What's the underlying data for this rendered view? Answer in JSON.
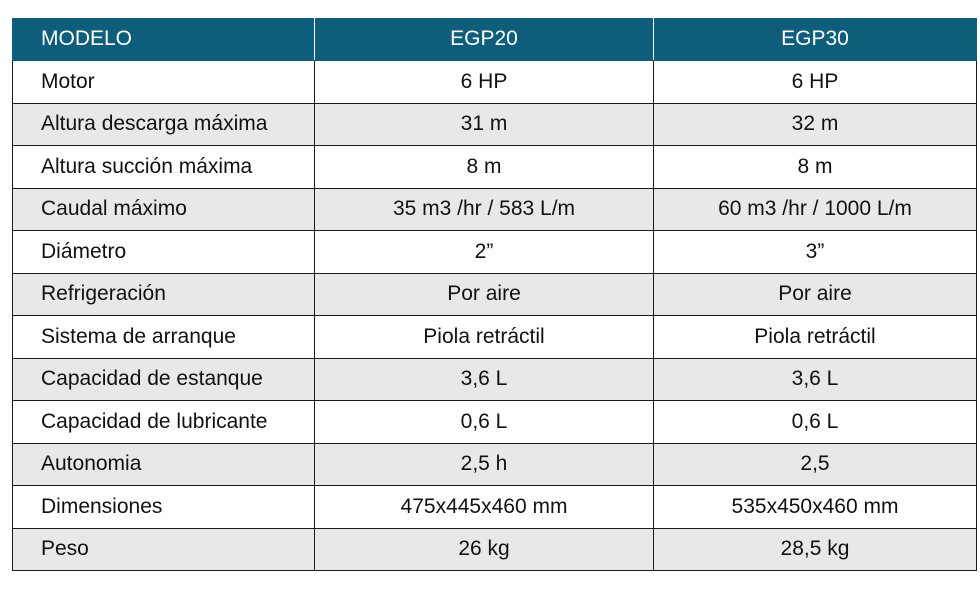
{
  "table": {
    "headers": [
      "MODELO",
      "EGP20",
      "EGP30"
    ],
    "rows": [
      {
        "label": "Motor",
        "egp20": "6 HP",
        "egp30": "6 HP"
      },
      {
        "label": "Altura descarga máxima",
        "egp20": "31 m",
        "egp30": "32 m"
      },
      {
        "label": "Altura succión máxima",
        "egp20": "8 m",
        "egp30": "8 m"
      },
      {
        "label": "Caudal máximo",
        "egp20": "35 m3 /hr / 583 L/m",
        "egp30": "60 m3 /hr / 1000 L/m"
      },
      {
        "label": "Diámetro",
        "egp20": "2”",
        "egp30": "3”"
      },
      {
        "label": "Refrigeración",
        "egp20": "Por aire",
        "egp30": "Por aire"
      },
      {
        "label": "Sistema de arranque",
        "egp20": "Piola retráctil",
        "egp30": "Piola retráctil"
      },
      {
        "label": "Capacidad de estanque",
        "egp20": "3,6 L",
        "egp30": "3,6 L"
      },
      {
        "label": "Capacidad de lubricante",
        "egp20": "0,6 L",
        "egp30": "0,6 L"
      },
      {
        "label": "Autonomia",
        "egp20": "2,5 h",
        "egp30": "2,5"
      },
      {
        "label": "Dimensiones",
        "egp20": "475x445x460 mm",
        "egp30": "535x450x460 mm"
      },
      {
        "label": "Peso",
        "egp20": "26 kg",
        "egp30": "28,5 kg"
      }
    ]
  },
  "colors": {
    "header_bg": "#0e5d7b",
    "header_text": "#ffffff",
    "shaded_row": "#e8e8e8"
  }
}
